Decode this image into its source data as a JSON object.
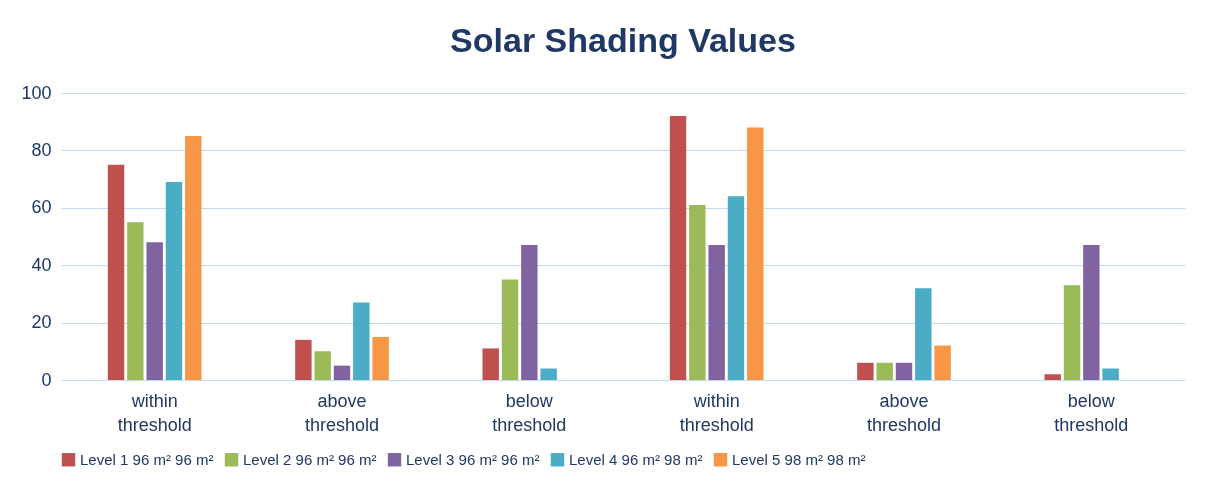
{
  "chart_data": {
    "type": "bar",
    "title": "Solar Shading Values",
    "categories": [
      "within threshold",
      "above threshold",
      "below threshold",
      "within threshold",
      "above threshold",
      "below threshold"
    ],
    "series": [
      {
        "name": "Level 1 96 m² 96 m²",
        "color": "#c0504d",
        "values": [
          75,
          14,
          11,
          92,
          6,
          2
        ]
      },
      {
        "name": "Level 2 96 m² 96 m²",
        "color": "#9bbb59",
        "values": [
          55,
          10,
          35,
          61,
          6,
          33
        ]
      },
      {
        "name": "Level 3 96 m² 96 m²",
        "color": "#8064a2",
        "values": [
          48,
          5,
          47,
          47,
          6,
          47
        ]
      },
      {
        "name": "Level 4 96 m² 98 m²",
        "color": "#4bacc6",
        "values": [
          69,
          27,
          4,
          64,
          32,
          4
        ]
      },
      {
        "name": "Level 5 98 m² 98 m²",
        "color": "#f79646",
        "values": [
          85,
          15,
          null,
          88,
          12,
          null
        ]
      }
    ],
    "ylim": [
      0,
      100
    ],
    "yticks": [
      0,
      20,
      40,
      60,
      80,
      100
    ],
    "grid": "y",
    "legend": "bottom"
  }
}
